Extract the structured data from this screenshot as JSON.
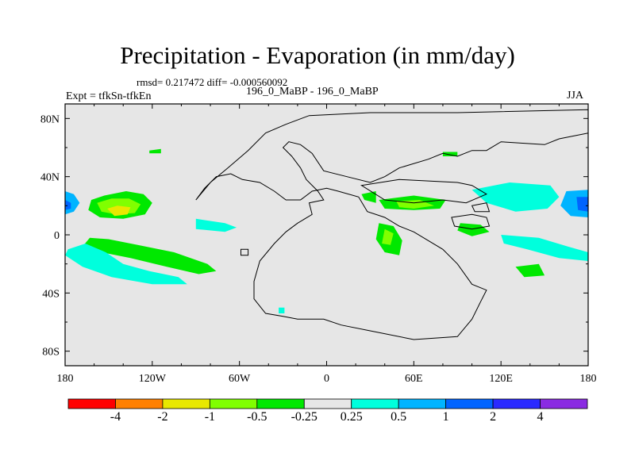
{
  "chart_data": {
    "type": "filled-contour-map",
    "title": "Precipitation - Evaporation (in mm/day)",
    "stats": "rmsd= 0.217472  diff= -0.000560092",
    "experiment": "Expt = tfkSn-tfkEn",
    "comparison": "196_0_MaBP - 196_0_MaBP",
    "season": "JJA",
    "x_ticks": [
      "180",
      "120W",
      "60W",
      "0",
      "60E",
      "120E",
      "180"
    ],
    "x_tick_values": [
      -180,
      -120,
      -60,
      0,
      60,
      120,
      180
    ],
    "y_ticks": [
      "80N",
      "40N",
      "0",
      "40S",
      "80S"
    ],
    "y_tick_values": [
      80,
      40,
      0,
      -40,
      -80
    ],
    "xlim": [
      -180,
      180
    ],
    "ylim": [
      -90,
      90
    ],
    "colorbar": {
      "labels": [
        "-4",
        "-2",
        "-1",
        "-0.5",
        "-0.25",
        "0.25",
        "0.5",
        "1",
        "2",
        "4"
      ],
      "colors": [
        "#ff0000",
        "#ff8000",
        "#e8e800",
        "#80ff00",
        "#00e800",
        "#e6e6e6",
        "#00ffdd",
        "#00b4ff",
        "#0064ff",
        "#2a2aff",
        "#8a2be2"
      ]
    },
    "regions": [
      {
        "name": "north-pacific-dry-outer",
        "level": "-0.25",
        "polygon": [
          [
            -162,
            24
          ],
          [
            -153,
            27
          ],
          [
            -138,
            30
          ],
          [
            -126,
            28
          ],
          [
            -120,
            22
          ],
          [
            -125,
            14
          ],
          [
            -140,
            11
          ],
          [
            -156,
            12
          ],
          [
            -164,
            17
          ]
        ]
      },
      {
        "name": "north-pacific-dry-mid",
        "level": "-0.5",
        "polygon": [
          [
            -158,
            22
          ],
          [
            -148,
            25
          ],
          [
            -136,
            25
          ],
          [
            -128,
            21
          ],
          [
            -132,
            15
          ],
          [
            -145,
            14
          ],
          [
            -155,
            16
          ]
        ]
      },
      {
        "name": "north-pacific-dry-core",
        "level": "-1",
        "polygon": [
          [
            -151,
            18
          ],
          [
            -144,
            20
          ],
          [
            -135,
            19
          ],
          [
            -137,
            14
          ],
          [
            -146,
            13
          ]
        ]
      },
      {
        "name": "south-pacific-dry-band",
        "level": "-0.25",
        "polygon": [
          [
            -163,
            -2
          ],
          [
            -150,
            -3
          ],
          [
            -130,
            -7
          ],
          [
            -105,
            -12
          ],
          [
            -82,
            -20
          ],
          [
            -76,
            -25
          ],
          [
            -88,
            -27
          ],
          [
            -110,
            -22
          ],
          [
            -135,
            -16
          ],
          [
            -155,
            -12
          ],
          [
            -168,
            -8
          ]
        ]
      },
      {
        "name": "south-pacific-wet-band",
        "level": "0.25",
        "polygon": [
          [
            -178,
            -10
          ],
          [
            -166,
            -6
          ],
          [
            -152,
            -12
          ],
          [
            -140,
            -20
          ],
          [
            -122,
            -25
          ],
          [
            -102,
            -29
          ],
          [
            -96,
            -34
          ],
          [
            -120,
            -34
          ],
          [
            -148,
            -29
          ],
          [
            -168,
            -22
          ],
          [
            -180,
            -14
          ]
        ]
      },
      {
        "name": "pacific-wet-west-edge",
        "level": "0.5",
        "polygon": [
          [
            -180,
            30
          ],
          [
            -174,
            28
          ],
          [
            -170,
            22
          ],
          [
            -174,
            16
          ],
          [
            -180,
            14
          ]
        ]
      },
      {
        "name": "pacific-wet-west-core",
        "level": "1",
        "polygon": [
          [
            -180,
            24
          ],
          [
            -176,
            22
          ],
          [
            -176,
            18
          ],
          [
            -180,
            17
          ]
        ]
      },
      {
        "name": "central-pacific-wet",
        "level": "0.25",
        "polygon": [
          [
            -90,
            11
          ],
          [
            -70,
            8
          ],
          [
            -62,
            5
          ],
          [
            -70,
            2
          ],
          [
            -90,
            4
          ]
        ]
      },
      {
        "name": "south-atlantic-dry",
        "level": "-0.25",
        "polygon": [
          [
            36,
            8
          ],
          [
            46,
            6
          ],
          [
            52,
            -4
          ],
          [
            50,
            -14
          ],
          [
            40,
            -12
          ],
          [
            34,
            -3
          ]
        ]
      },
      {
        "name": "south-atlantic-dry-core",
        "level": "-0.5",
        "polygon": [
          [
            40,
            4
          ],
          [
            46,
            1
          ],
          [
            44,
            -7
          ],
          [
            38,
            -6
          ]
        ]
      },
      {
        "name": "north-africa-dry",
        "level": "-0.25",
        "polygon": [
          [
            36,
            24
          ],
          [
            60,
            27
          ],
          [
            82,
            24
          ],
          [
            78,
            18
          ],
          [
            60,
            17
          ],
          [
            40,
            18
          ]
        ]
      },
      {
        "name": "arabia-dry",
        "level": "-0.5",
        "polygon": [
          [
            48,
            23
          ],
          [
            64,
            24
          ],
          [
            74,
            20
          ],
          [
            60,
            18
          ],
          [
            50,
            19
          ]
        ]
      },
      {
        "name": "west-pacific-wet",
        "level": "0.5",
        "polygon": [
          [
            128,
            34
          ],
          [
            142,
            33
          ],
          [
            152,
            26
          ],
          [
            148,
            20
          ],
          [
            136,
            21
          ],
          [
            126,
            27
          ]
        ]
      },
      {
        "name": "west-pacific-wet-ring",
        "level": "0.25",
        "polygon": [
          [
            100,
            31
          ],
          [
            126,
            36
          ],
          [
            154,
            34
          ],
          [
            160,
            26
          ],
          [
            152,
            18
          ],
          [
            130,
            16
          ],
          [
            110,
            22
          ]
        ]
      },
      {
        "name": "dateline-wet",
        "level": "0.5",
        "polygon": [
          [
            165,
            30
          ],
          [
            180,
            31
          ],
          [
            180,
            12
          ],
          [
            168,
            13
          ],
          [
            161,
            20
          ]
        ]
      },
      {
        "name": "dateline-wet-core",
        "level": "1",
        "polygon": [
          [
            172,
            26
          ],
          [
            180,
            26
          ],
          [
            180,
            16
          ],
          [
            173,
            17
          ]
        ]
      },
      {
        "name": "indian-ocean-wet",
        "level": "0.25",
        "polygon": [
          [
            120,
            0
          ],
          [
            146,
            -2
          ],
          [
            166,
            -8
          ],
          [
            180,
            -12
          ],
          [
            180,
            -18
          ],
          [
            160,
            -16
          ],
          [
            138,
            -10
          ],
          [
            122,
            -6
          ]
        ]
      },
      {
        "name": "south-indian-dry",
        "level": "-0.25",
        "polygon": [
          [
            130,
            -22
          ],
          [
            146,
            -20
          ],
          [
            150,
            -28
          ],
          [
            136,
            -29
          ]
        ]
      },
      {
        "name": "east-asia-dry",
        "level": "-0.25",
        "polygon": [
          [
            92,
            8
          ],
          [
            106,
            7
          ],
          [
            112,
            2
          ],
          [
            100,
            -1
          ],
          [
            90,
            3
          ]
        ]
      },
      {
        "name": "west-atlantic-dry",
        "level": "-0.25",
        "polygon": [
          [
            24,
            28
          ],
          [
            34,
            30
          ],
          [
            34,
            22
          ],
          [
            26,
            24
          ]
        ]
      },
      {
        "name": "north-hemisphere-dry-speck",
        "level": "-0.25",
        "polygon": [
          [
            -122,
            58
          ],
          [
            -114,
            59
          ],
          [
            -114,
            56
          ],
          [
            -122,
            56
          ]
        ]
      },
      {
        "name": "arctic-dry-speck",
        "level": "-0.25",
        "polygon": [
          [
            80,
            57
          ],
          [
            90,
            57
          ],
          [
            90,
            54
          ],
          [
            80,
            54
          ]
        ]
      },
      {
        "name": "southern-wet-speck",
        "level": "0.25",
        "polygon": [
          [
            -33,
            -50
          ],
          [
            -29,
            -50
          ],
          [
            -29,
            -54
          ],
          [
            -33,
            -54
          ]
        ]
      }
    ],
    "continents": [
      {
        "name": "pangea-main",
        "polygon": [
          [
            -90,
            24
          ],
          [
            -80,
            36
          ],
          [
            -68,
            46
          ],
          [
            -54,
            58
          ],
          [
            -42,
            70
          ],
          [
            -28,
            76
          ],
          [
            -12,
            82
          ],
          [
            30,
            84
          ],
          [
            90,
            84
          ],
          [
            180,
            86
          ],
          [
            180,
            70
          ],
          [
            160,
            66
          ],
          [
            150,
            62
          ],
          [
            120,
            64
          ],
          [
            110,
            58
          ],
          [
            100,
            58
          ],
          [
            90,
            54
          ],
          [
            80,
            56
          ],
          [
            70,
            52
          ],
          [
            50,
            46
          ],
          [
            40,
            40
          ],
          [
            30,
            36
          ],
          [
            14,
            40
          ],
          [
            -2,
            44
          ],
          [
            -10,
            56
          ],
          [
            -18,
            62
          ],
          [
            -26,
            64
          ],
          [
            -30,
            60
          ],
          [
            -24,
            54
          ],
          [
            -18,
            46
          ],
          [
            -14,
            38
          ],
          [
            -6,
            30
          ],
          [
            -2,
            24
          ],
          [
            -12,
            22
          ],
          [
            -10,
            14
          ],
          [
            -20,
            8
          ],
          [
            -28,
            2
          ],
          [
            -36,
            -6
          ],
          [
            -46,
            -18
          ],
          [
            -50,
            -32
          ],
          [
            -50,
            -44
          ],
          [
            -42,
            -54
          ],
          [
            -30,
            -56
          ],
          [
            -20,
            -58
          ],
          [
            -2,
            -58
          ],
          [
            10,
            -62
          ],
          [
            30,
            -66
          ],
          [
            60,
            -72
          ],
          [
            90,
            -70
          ],
          [
            100,
            -58
          ],
          [
            106,
            -46
          ],
          [
            110,
            -38
          ],
          [
            100,
            -34
          ],
          [
            90,
            -20
          ],
          [
            80,
            -10
          ],
          [
            70,
            -4
          ],
          [
            60,
            2
          ],
          [
            50,
            6
          ],
          [
            40,
            12
          ],
          [
            28,
            16
          ],
          [
            22,
            26
          ],
          [
            8,
            30
          ],
          [
            0,
            32
          ],
          [
            -10,
            30
          ],
          [
            -18,
            24
          ],
          [
            -28,
            24
          ],
          [
            -36,
            30
          ],
          [
            -46,
            36
          ],
          [
            -58,
            38
          ],
          [
            -66,
            42
          ],
          [
            -76,
            40
          ],
          [
            -84,
            32
          ]
        ]
      },
      {
        "name": "tethys-north-coast",
        "polygon": [
          [
            24,
            34
          ],
          [
            50,
            38
          ],
          [
            90,
            36
          ],
          [
            100,
            34
          ],
          [
            110,
            28
          ],
          [
            96,
            22
          ],
          [
            80,
            24
          ],
          [
            60,
            22
          ],
          [
            40,
            24
          ]
        ]
      },
      {
        "name": "cathaysia",
        "polygon": [
          [
            86,
            12
          ],
          [
            100,
            14
          ],
          [
            110,
            12
          ],
          [
            112,
            6
          ],
          [
            100,
            4
          ],
          [
            88,
            6
          ]
        ]
      },
      {
        "name": "east-asia-block",
        "polygon": [
          [
            100,
            20
          ],
          [
            110,
            22
          ],
          [
            112,
            16
          ],
          [
            102,
            16
          ]
        ]
      },
      {
        "name": "small-island",
        "polygon": [
          [
            -59,
            -10
          ],
          [
            -54,
            -10
          ],
          [
            -54,
            -14
          ],
          [
            -59,
            -14
          ]
        ]
      }
    ]
  }
}
